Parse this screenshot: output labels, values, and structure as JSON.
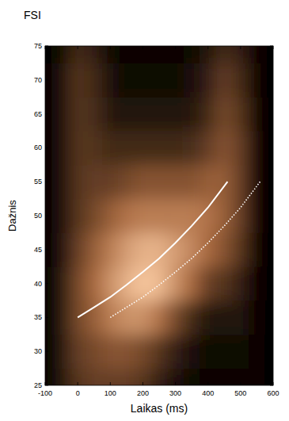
{
  "chart_data": {
    "type": "heatmap",
    "title": "FSI",
    "x_label": "Laikas (ms)",
    "y_label": "Dažnis",
    "xlim": [
      -100,
      600
    ],
    "ylim": [
      25,
      75
    ],
    "xticks": [
      -100,
      0,
      100,
      200,
      300,
      400,
      500,
      600
    ],
    "yticks": [
      25,
      30,
      35,
      40,
      45,
      50,
      55,
      60,
      65,
      70,
      75
    ],
    "grid": false,
    "x": [
      -100,
      -50,
      0,
      50,
      100,
      150,
      200,
      250,
      300,
      350,
      400,
      450,
      500,
      550,
      600
    ],
    "y": [
      25,
      30,
      35,
      40,
      45,
      50,
      55,
      60,
      65,
      70,
      75
    ],
    "values": [
      [
        0,
        0.1,
        0.25,
        0.3,
        0.3,
        0.3,
        0.25,
        0.15,
        0.08,
        0.05,
        0.03,
        0.03,
        0.03,
        0.02,
        0
      ],
      [
        0,
        0.1,
        0.3,
        0.35,
        0.4,
        0.4,
        0.35,
        0.25,
        0.15,
        0.08,
        0.05,
        0.05,
        0.05,
        0.02,
        0
      ],
      [
        0,
        0.1,
        0.35,
        0.45,
        0.6,
        0.7,
        0.7,
        0.55,
        0.35,
        0.2,
        0.1,
        0.1,
        0.1,
        0.02,
        0
      ],
      [
        0,
        0.1,
        0.35,
        0.5,
        0.7,
        0.85,
        0.95,
        0.9,
        0.7,
        0.5,
        0.3,
        0.25,
        0.15,
        0.02,
        0
      ],
      [
        0,
        0.08,
        0.3,
        0.45,
        0.6,
        0.75,
        0.85,
        0.85,
        0.75,
        0.65,
        0.5,
        0.4,
        0.25,
        0.02,
        0
      ],
      [
        0,
        0.08,
        0.25,
        0.35,
        0.45,
        0.55,
        0.6,
        0.6,
        0.6,
        0.6,
        0.55,
        0.45,
        0.3,
        0.03,
        0
      ],
      [
        0,
        0.08,
        0.25,
        0.3,
        0.3,
        0.35,
        0.4,
        0.4,
        0.4,
        0.4,
        0.45,
        0.45,
        0.3,
        0.03,
        0
      ],
      [
        0,
        0.08,
        0.25,
        0.25,
        0.2,
        0.2,
        0.2,
        0.2,
        0.2,
        0.22,
        0.3,
        0.4,
        0.3,
        0.03,
        0
      ],
      [
        0,
        0.08,
        0.25,
        0.22,
        0.12,
        0.1,
        0.1,
        0.1,
        0.1,
        0.12,
        0.2,
        0.35,
        0.25,
        0.03,
        0
      ],
      [
        0,
        0.08,
        0.25,
        0.2,
        0.08,
        0.05,
        0.05,
        0.05,
        0.05,
        0.08,
        0.15,
        0.3,
        0.2,
        0.02,
        0
      ],
      [
        0,
        0.05,
        0.2,
        0.15,
        0.05,
        0.03,
        0.03,
        0.03,
        0.03,
        0.05,
        0.1,
        0.2,
        0.15,
        0.02,
        0
      ]
    ],
    "series": [
      {
        "color": "#ffffff",
        "line_style": "solid",
        "x": [
          0,
          50,
          100,
          150,
          200,
          250,
          300,
          350,
          400,
          460
        ],
        "values": [
          35,
          36.5,
          38,
          39.8,
          41.7,
          43.7,
          46,
          48.5,
          51.2,
          55
        ]
      },
      {
        "color": "#ffffff",
        "line_style": "dotted",
        "x": [
          100,
          150,
          200,
          250,
          300,
          350,
          400,
          450,
          500,
          560
        ],
        "values": [
          35,
          36.5,
          38,
          39.8,
          41.7,
          43.7,
          46,
          48.5,
          51.2,
          55
        ]
      }
    ]
  }
}
